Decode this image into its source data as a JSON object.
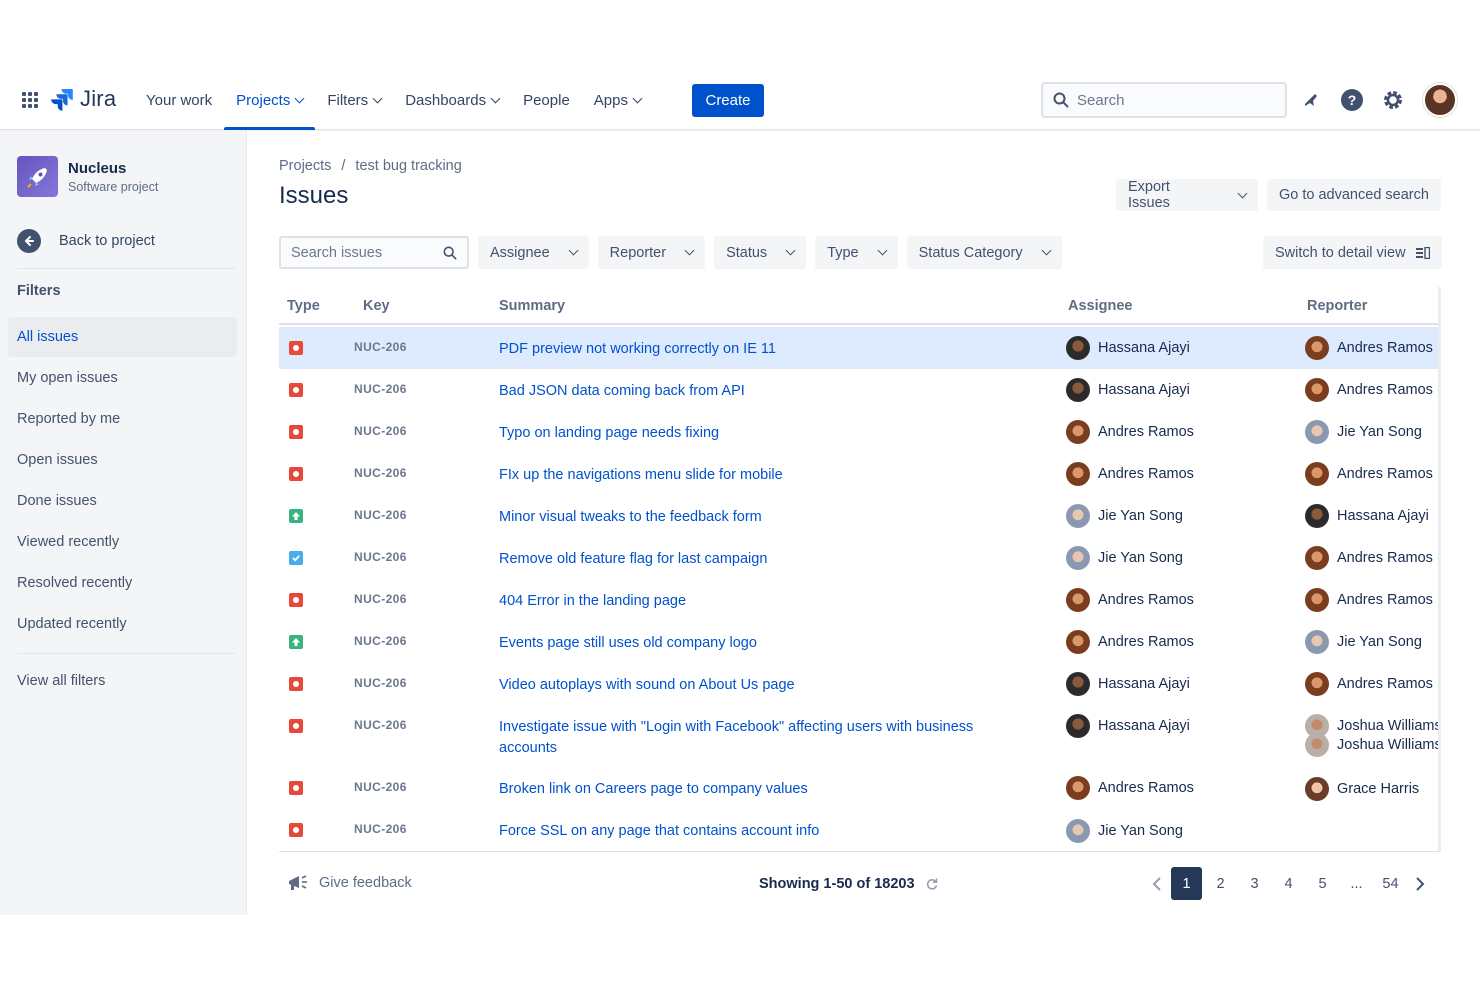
{
  "nav": {
    "logo": "Jira",
    "items": [
      {
        "label": "Your work",
        "dropdown": false,
        "active": false
      },
      {
        "label": "Projects",
        "dropdown": true,
        "active": true
      },
      {
        "label": "Filters",
        "dropdown": true,
        "active": false
      },
      {
        "label": "Dashboards",
        "dropdown": true,
        "active": false
      },
      {
        "label": "People",
        "dropdown": false,
        "active": false
      },
      {
        "label": "Apps",
        "dropdown": true,
        "active": false
      }
    ],
    "create_label": "Create",
    "search_placeholder": "Search"
  },
  "sidebar": {
    "project_name": "Nucleus",
    "project_type": "Software project",
    "back_label": "Back to project",
    "filters_heading": "Filters",
    "items": [
      {
        "label": "All issues",
        "active": true
      },
      {
        "label": "My open issues",
        "active": false
      },
      {
        "label": "Reported by me",
        "active": false
      },
      {
        "label": "Open issues",
        "active": false
      },
      {
        "label": "Done issues",
        "active": false
      },
      {
        "label": "Viewed recently",
        "active": false
      },
      {
        "label": "Resolved recently",
        "active": false
      },
      {
        "label": "Updated recently",
        "active": false
      }
    ],
    "view_all": "View all filters"
  },
  "breadcrumb": {
    "root": "Projects",
    "sep": "/",
    "current": "test bug tracking"
  },
  "page_title": "Issues",
  "actions": {
    "export": "Export Issues",
    "advanced": "Go to advanced search",
    "detail_view": "Switch to detail view"
  },
  "filters": {
    "search_placeholder": "Search issues",
    "buttons": [
      "Assignee",
      "Reporter",
      "Status",
      "Type",
      "Status Category"
    ]
  },
  "table": {
    "headers": {
      "type": "Type",
      "key": "Key",
      "summary": "Summary",
      "assignee": "Assignee",
      "reporter": "Reporter"
    },
    "rows": [
      {
        "type": "bug",
        "key": "NUC-206",
        "summary": "PDF preview not working correctly on IE 11",
        "assignee": "Hassana Ajayi",
        "reporter": "Andres Ramos",
        "selected": true
      },
      {
        "type": "bug",
        "key": "NUC-206",
        "summary": "Bad JSON data coming back from API",
        "assignee": "Hassana Ajayi",
        "reporter": "Andres Ramos"
      },
      {
        "type": "bug",
        "key": "NUC-206",
        "summary": "Typo on landing page needs fixing",
        "assignee": "Andres Ramos",
        "reporter": "Jie Yan Song"
      },
      {
        "type": "bug",
        "key": "NUC-206",
        "summary": "FIx up the navigations menu slide for mobile",
        "assignee": "Andres Ramos",
        "reporter": "Andres Ramos"
      },
      {
        "type": "improvement",
        "key": "NUC-206",
        "summary": "Minor visual tweaks to the feedback form",
        "assignee": "Jie Yan Song",
        "reporter": "Hassana Ajayi"
      },
      {
        "type": "task",
        "key": "NUC-206",
        "summary": "Remove old feature flag for last campaign",
        "assignee": "Jie Yan Song",
        "reporter": "Andres Ramos"
      },
      {
        "type": "bug",
        "key": "NUC-206",
        "summary": "404 Error in the landing page",
        "assignee": "Andres Ramos",
        "reporter": "Andres Ramos"
      },
      {
        "type": "improvement",
        "key": "NUC-206",
        "summary": "Events page still uses old company logo",
        "assignee": "Andres Ramos",
        "reporter": "Jie Yan Song"
      },
      {
        "type": "bug",
        "key": "NUC-206",
        "summary": "Video autoplays with sound on About Us page",
        "assignee": "Hassana Ajayi",
        "reporter": "Andres Ramos"
      },
      {
        "type": "bug",
        "key": "NUC-206",
        "summary": "Investigate issue with \"Login with Facebook\" affecting users with business accounts",
        "assignee": "Hassana Ajayi",
        "reporter": "Joshua Williams"
      },
      {
        "type": "none",
        "key": "",
        "summary": "",
        "assignee": "",
        "reporter": "Joshua Williams"
      },
      {
        "type": "bug",
        "key": "NUC-206",
        "summary": "Broken link on Careers page to company values",
        "assignee": "Andres Ramos",
        "reporter": "Grace Harris"
      },
      {
        "type": "bug",
        "key": "NUC-206",
        "summary": "Force SSL on any page that contains account info",
        "assignee": "Jie Yan Song",
        "reporter": ""
      }
    ]
  },
  "footer": {
    "feedback": "Give feedback",
    "showing": "Showing 1-50 of 18203",
    "pages": [
      "1",
      "2",
      "3",
      "4",
      "5",
      "...",
      "54"
    ],
    "current_page": "1"
  },
  "colors": {
    "primary": "#0052CC",
    "bug": "#E5493A",
    "improvement": "#36B37E",
    "task": "#4BADE8",
    "selected_row": "#DEEBFF"
  }
}
